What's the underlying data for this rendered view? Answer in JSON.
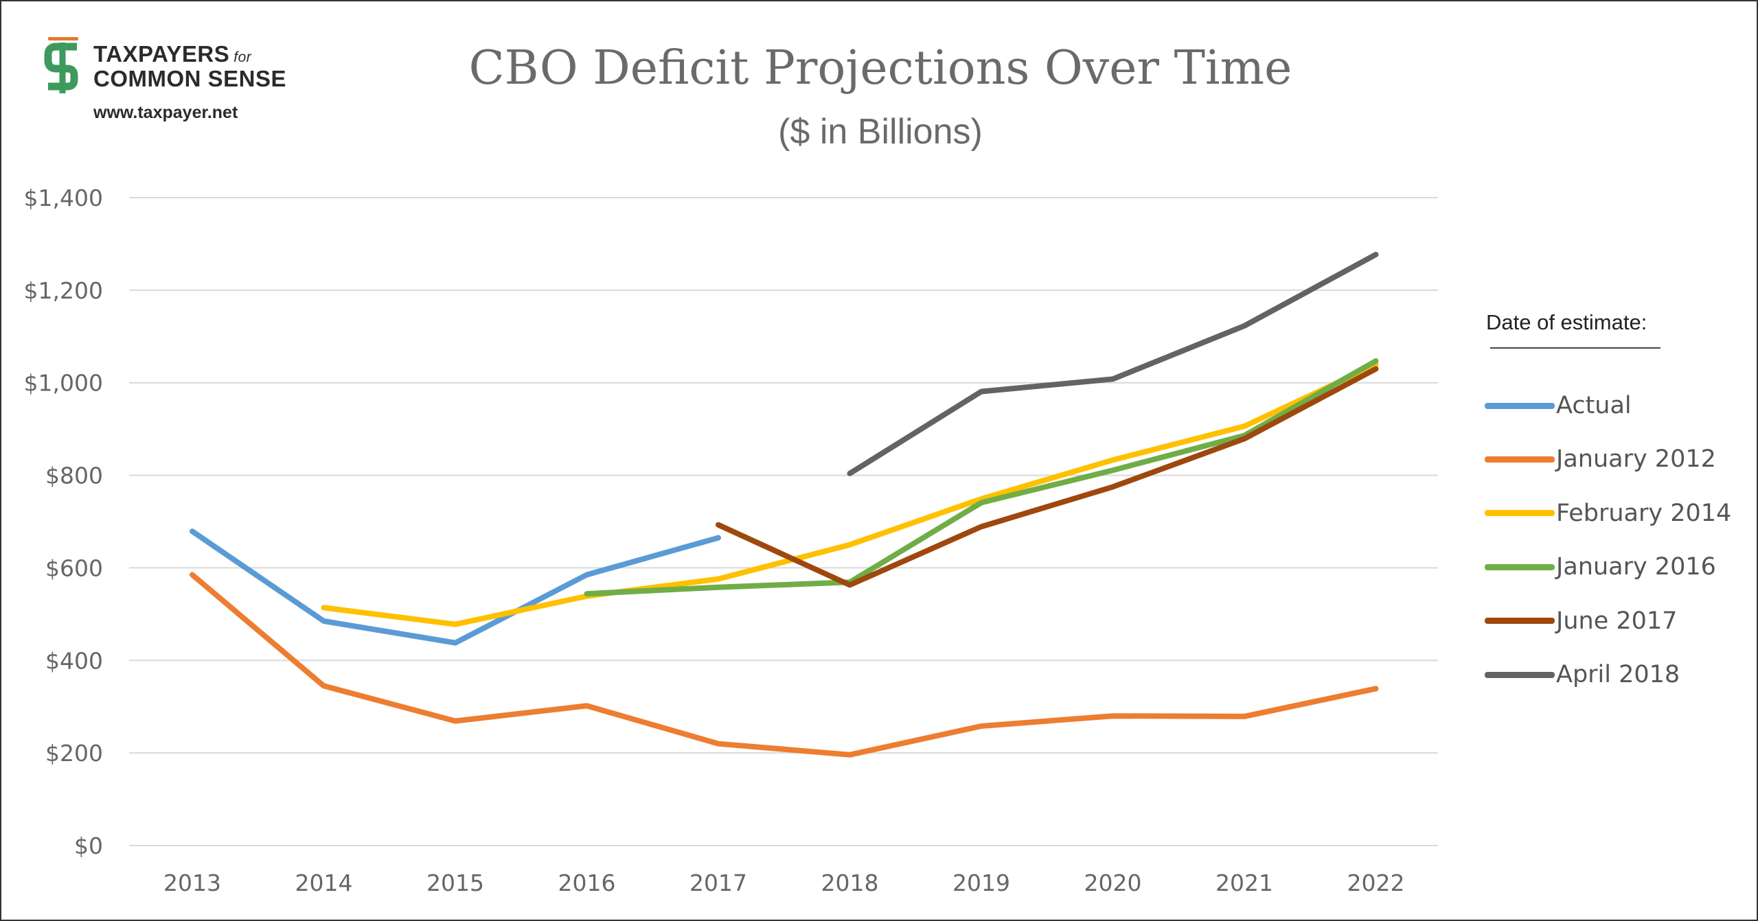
{
  "logo": {
    "name_line1": "TAXPAYERS",
    "name_for": "for",
    "name_line2": "COMMON SENSE",
    "url": "www.taxpayer.net",
    "mark_color": "#3d9a5c",
    "accent_color": "#e07b2e"
  },
  "chart_data": {
    "type": "line",
    "title": "CBO Deficit Projections Over Time",
    "subtitle": "($ in Billions)",
    "xlabel": "",
    "ylabel": "",
    "categories": [
      "2013",
      "2014",
      "2015",
      "2016",
      "2017",
      "2018",
      "2019",
      "2020",
      "2021",
      "2022"
    ],
    "ylim": [
      0,
      1400
    ],
    "yticks": [
      0,
      200,
      400,
      600,
      800,
      1000,
      1200,
      1400
    ],
    "ytick_labels": [
      "$0",
      "$200",
      "$400",
      "$600",
      "$800",
      "$1,000",
      "$1,200",
      "$1,400"
    ],
    "grid": "horizontal",
    "legend_title": "Date of estimate:",
    "legend_position": "right",
    "series": [
      {
        "name": "Actual",
        "color": "#5b9bd5",
        "values": [
          679,
          485,
          438,
          585,
          665,
          null,
          null,
          null,
          null,
          null
        ]
      },
      {
        "name": "January 2012",
        "color": "#ed7d31",
        "values": [
          585,
          345,
          269,
          302,
          220,
          196,
          258,
          280,
          279,
          339
        ]
      },
      {
        "name": "February 2014",
        "color": "#ffc000",
        "values": [
          null,
          514,
          478,
          539,
          576,
          650,
          749,
          833,
          906,
          1039
        ]
      },
      {
        "name": "January 2016",
        "color": "#70ad47",
        "values": [
          null,
          null,
          null,
          544,
          558,
          569,
          741,
          811,
          886,
          1047
        ]
      },
      {
        "name": "June 2017",
        "color": "#9e480e",
        "values": [
          null,
          null,
          null,
          null,
          693,
          563,
          689,
          775,
          879,
          1030
        ]
      },
      {
        "name": "April 2018",
        "color": "#636363",
        "values": [
          null,
          null,
          null,
          null,
          null,
          804,
          981,
          1008,
          1123,
          1277
        ]
      }
    ]
  }
}
